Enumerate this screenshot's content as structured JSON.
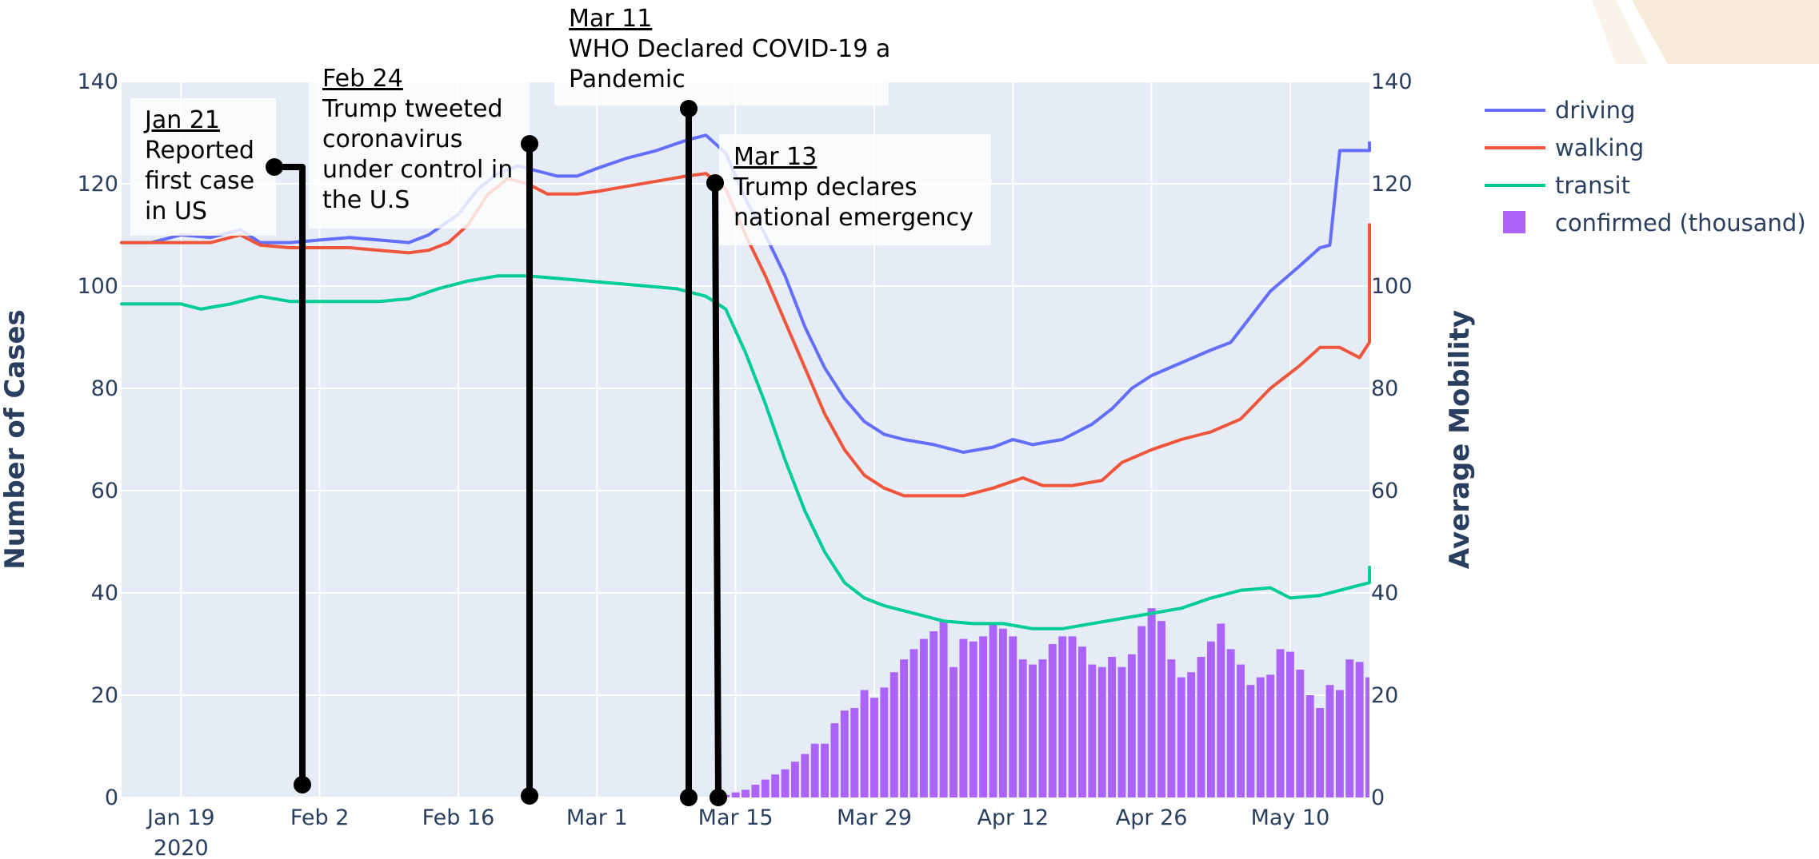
{
  "chart_data": {
    "type": "line",
    "title": "",
    "ylabel": "Number of Cases",
    "y2label": "Average Mobility",
    "ylim": [
      0,
      140
    ],
    "y2lim": [
      0,
      140
    ],
    "yticks": [
      "0",
      "20",
      "40",
      "60",
      "80",
      "100",
      "120",
      "140"
    ],
    "y2ticks": [
      "0",
      "20",
      "40",
      "60",
      "80",
      "100",
      "120",
      "140"
    ],
    "x_start": "2020-01-13",
    "x_end": "2020-05-18",
    "xticks": [
      {
        "date": "2020-01-19",
        "label": "Jan 19",
        "sublabel": "2020"
      },
      {
        "date": "2020-02-02",
        "label": "Feb 2",
        "sublabel": ""
      },
      {
        "date": "2020-02-16",
        "label": "Feb 16",
        "sublabel": ""
      },
      {
        "date": "2020-03-01",
        "label": "Mar 1",
        "sublabel": ""
      },
      {
        "date": "2020-03-15",
        "label": "Mar 15",
        "sublabel": ""
      },
      {
        "date": "2020-03-29",
        "label": "Mar 29",
        "sublabel": ""
      },
      {
        "date": "2020-04-12",
        "label": "Apr 12",
        "sublabel": ""
      },
      {
        "date": "2020-04-26",
        "label": "Apr 26",
        "sublabel": ""
      },
      {
        "date": "2020-05-10",
        "label": "May 10",
        "sublabel": ""
      }
    ],
    "legend_position": "top-right",
    "series": [
      {
        "name": "driving",
        "color": "#636efa",
        "kind": "line",
        "axis": "y2",
        "points": [
          [
            "2020-01-13",
            108.5
          ],
          [
            "2020-01-16",
            108.5
          ],
          [
            "2020-01-19",
            110
          ],
          [
            "2020-01-22",
            109.5
          ],
          [
            "2020-01-25",
            111
          ],
          [
            "2020-01-27",
            108.5
          ],
          [
            "2020-01-30",
            108.5
          ],
          [
            "2020-02-02",
            109
          ],
          [
            "2020-02-05",
            109.5
          ],
          [
            "2020-02-08",
            109
          ],
          [
            "2020-02-11",
            108.5
          ],
          [
            "2020-02-13",
            110
          ],
          [
            "2020-02-16",
            114
          ],
          [
            "2020-02-18",
            119
          ],
          [
            "2020-02-20",
            122
          ],
          [
            "2020-02-22",
            123.5
          ],
          [
            "2020-02-24",
            122.5
          ],
          [
            "2020-02-26",
            121.5
          ],
          [
            "2020-02-28",
            121.5
          ],
          [
            "2020-03-01",
            123
          ],
          [
            "2020-03-04",
            125
          ],
          [
            "2020-03-07",
            126.5
          ],
          [
            "2020-03-10",
            128.5
          ],
          [
            "2020-03-12",
            129.5
          ],
          [
            "2020-03-14",
            126
          ],
          [
            "2020-03-16",
            117
          ],
          [
            "2020-03-18",
            110
          ],
          [
            "2020-03-20",
            102
          ],
          [
            "2020-03-22",
            92
          ],
          [
            "2020-03-24",
            84
          ],
          [
            "2020-03-26",
            78
          ],
          [
            "2020-03-28",
            73.5
          ],
          [
            "2020-03-30",
            71
          ],
          [
            "2020-04-01",
            70
          ],
          [
            "2020-04-04",
            69
          ],
          [
            "2020-04-07",
            67.5
          ],
          [
            "2020-04-10",
            68.5
          ],
          [
            "2020-04-12",
            70
          ],
          [
            "2020-04-14",
            69
          ],
          [
            "2020-04-17",
            70
          ],
          [
            "2020-04-20",
            73
          ],
          [
            "2020-04-22",
            76
          ],
          [
            "2020-04-24",
            80
          ],
          [
            "2020-04-26",
            82.5
          ],
          [
            "2020-04-29",
            85
          ],
          [
            "2020-05-02",
            87.5
          ],
          [
            "2020-05-04",
            89
          ],
          [
            "2020-05-06",
            94
          ],
          [
            "2020-05-08",
            99
          ],
          [
            "2020-05-11",
            104
          ],
          [
            "2020-05-13",
            107.5
          ],
          [
            "2020-05-14",
            108
          ],
          [
            "2020-05-15",
            126.5
          ],
          [
            "2020-05-17",
            126.5
          ],
          [
            "2020-05-19",
            126.5
          ],
          [
            "2020-05-22",
            126.5
          ],
          [
            "2020-05-24",
            126.5
          ],
          [
            "2020-05-26",
            128
          ]
        ]
      },
      {
        "name": "walking",
        "color": "#ef553b",
        "kind": "line",
        "axis": "y2",
        "points": [
          [
            "2020-01-13",
            108.5
          ],
          [
            "2020-01-16",
            108.5
          ],
          [
            "2020-01-19",
            108.5
          ],
          [
            "2020-01-22",
            108.5
          ],
          [
            "2020-01-25",
            110
          ],
          [
            "2020-01-27",
            108
          ],
          [
            "2020-01-30",
            107.5
          ],
          [
            "2020-02-02",
            107.5
          ],
          [
            "2020-02-05",
            107.5
          ],
          [
            "2020-02-08",
            107
          ],
          [
            "2020-02-11",
            106.5
          ],
          [
            "2020-02-13",
            107
          ],
          [
            "2020-02-15",
            108.5
          ],
          [
            "2020-02-17",
            112
          ],
          [
            "2020-02-19",
            118
          ],
          [
            "2020-02-21",
            121
          ],
          [
            "2020-02-23",
            120
          ],
          [
            "2020-02-25",
            118
          ],
          [
            "2020-02-28",
            118
          ],
          [
            "2020-03-01",
            118.5
          ],
          [
            "2020-03-04",
            119.5
          ],
          [
            "2020-03-07",
            120.5
          ],
          [
            "2020-03-10",
            121.5
          ],
          [
            "2020-03-12",
            122
          ],
          [
            "2020-03-14",
            119
          ],
          [
            "2020-03-16",
            110
          ],
          [
            "2020-03-18",
            102
          ],
          [
            "2020-03-20",
            93
          ],
          [
            "2020-03-22",
            84
          ],
          [
            "2020-03-24",
            75
          ],
          [
            "2020-03-26",
            68
          ],
          [
            "2020-03-28",
            63
          ],
          [
            "2020-03-30",
            60.5
          ],
          [
            "2020-04-01",
            59
          ],
          [
            "2020-04-04",
            59
          ],
          [
            "2020-04-07",
            59
          ],
          [
            "2020-04-10",
            60.5
          ],
          [
            "2020-04-13",
            62.5
          ],
          [
            "2020-04-15",
            61
          ],
          [
            "2020-04-18",
            61
          ],
          [
            "2020-04-21",
            62
          ],
          [
            "2020-04-23",
            65.5
          ],
          [
            "2020-04-26",
            68
          ],
          [
            "2020-04-29",
            70
          ],
          [
            "2020-05-02",
            71.5
          ],
          [
            "2020-05-05",
            74
          ],
          [
            "2020-05-08",
            80
          ],
          [
            "2020-05-11",
            84.5
          ],
          [
            "2020-05-13",
            88
          ],
          [
            "2020-05-15",
            88
          ],
          [
            "2020-05-17",
            86
          ],
          [
            "2020-05-20",
            89
          ],
          [
            "2020-05-22",
            95
          ],
          [
            "2020-05-24",
            104
          ],
          [
            "2020-05-26",
            112
          ]
        ]
      },
      {
        "name": "transit",
        "color": "#00cc96",
        "kind": "line",
        "axis": "y2",
        "points": [
          [
            "2020-01-13",
            96.5
          ],
          [
            "2020-01-16",
            96.5
          ],
          [
            "2020-01-19",
            96.5
          ],
          [
            "2020-01-21",
            95.5
          ],
          [
            "2020-01-24",
            96.5
          ],
          [
            "2020-01-27",
            98
          ],
          [
            "2020-01-30",
            97
          ],
          [
            "2020-02-02",
            97
          ],
          [
            "2020-02-05",
            97
          ],
          [
            "2020-02-08",
            97
          ],
          [
            "2020-02-11",
            97.5
          ],
          [
            "2020-02-14",
            99.5
          ],
          [
            "2020-02-17",
            101
          ],
          [
            "2020-02-20",
            102
          ],
          [
            "2020-02-23",
            102
          ],
          [
            "2020-02-26",
            101.5
          ],
          [
            "2020-02-29",
            101
          ],
          [
            "2020-03-03",
            100.5
          ],
          [
            "2020-03-06",
            100
          ],
          [
            "2020-03-09",
            99.5
          ],
          [
            "2020-03-12",
            98
          ],
          [
            "2020-03-14",
            95.5
          ],
          [
            "2020-03-16",
            87
          ],
          [
            "2020-03-18",
            77
          ],
          [
            "2020-03-20",
            66
          ],
          [
            "2020-03-22",
            56
          ],
          [
            "2020-03-24",
            48
          ],
          [
            "2020-03-26",
            42
          ],
          [
            "2020-03-28",
            39
          ],
          [
            "2020-03-30",
            37.5
          ],
          [
            "2020-04-02",
            36
          ],
          [
            "2020-04-05",
            34.5
          ],
          [
            "2020-04-08",
            34
          ],
          [
            "2020-04-11",
            34
          ],
          [
            "2020-04-14",
            33
          ],
          [
            "2020-04-17",
            33
          ],
          [
            "2020-04-20",
            34
          ],
          [
            "2020-04-23",
            35
          ],
          [
            "2020-04-26",
            36
          ],
          [
            "2020-04-29",
            37
          ],
          [
            "2020-05-02",
            39
          ],
          [
            "2020-05-05",
            40.5
          ],
          [
            "2020-05-08",
            41
          ],
          [
            "2020-05-10",
            39
          ],
          [
            "2020-05-13",
            39.5
          ],
          [
            "2020-05-16",
            41
          ],
          [
            "2020-05-18",
            42
          ],
          [
            "2020-05-21",
            44
          ],
          [
            "2020-05-26",
            45
          ]
        ]
      },
      {
        "name": "confirmed (thousand)",
        "color": "#ab63fa",
        "kind": "bar",
        "axis": "y",
        "start": "2020-03-14",
        "values": [
          0.5,
          1,
          1.5,
          2.5,
          3.5,
          4.5,
          5.5,
          7,
          8.5,
          10.5,
          10.5,
          14.5,
          17,
          17.5,
          21,
          19.5,
          21.5,
          24.5,
          27,
          29,
          31,
          32.5,
          34.5,
          25.5,
          31,
          30.5,
          31.5,
          34,
          33,
          31.5,
          27,
          26,
          27,
          30,
          31.5,
          31.5,
          29.5,
          26,
          25.5,
          27.5,
          25.5,
          28,
          33.5,
          37,
          34.5,
          27,
          23.5,
          24.5,
          27.5,
          30.5,
          34,
          29,
          26,
          22,
          23.5,
          24,
          29,
          28.5,
          25,
          20,
          17.5,
          22,
          21,
          27,
          26.5,
          23.5,
          19,
          22,
          21,
          23
        ]
      }
    ],
    "annotations": [
      {
        "date_label": "Jan 21",
        "lines": [
          "Reported",
          "first case",
          "in US"
        ]
      },
      {
        "date_label": "Feb 24",
        "lines": [
          "Trump tweeted",
          "coronavirus",
          "under control in",
          "the U.S"
        ]
      },
      {
        "date_label": "Mar 11",
        "lines": [
          "WHO Declared COVID-19 a",
          "Pandemic"
        ]
      },
      {
        "date_label": "Mar 13",
        "lines": [
          "Trump declares",
          "national emergency"
        ]
      }
    ]
  }
}
